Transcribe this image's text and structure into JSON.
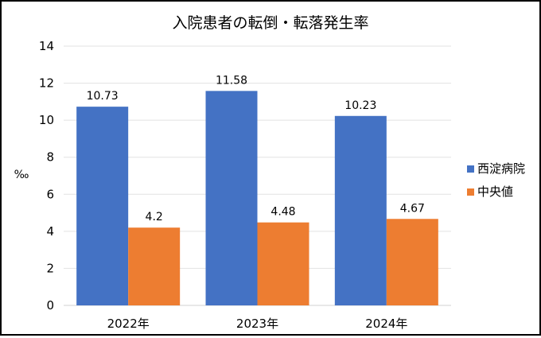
{
  "chart_data": {
    "type": "bar",
    "title": "入院患者の転倒・転落発生率",
    "ylabel": "‰",
    "xlabel": "",
    "categories": [
      "2022年",
      "2023年",
      "2024年"
    ],
    "series": [
      {
        "name": "西淀病院",
        "values": [
          10.73,
          11.58,
          10.23
        ],
        "color": "#4472C4"
      },
      {
        "name": "中央値",
        "values": [
          4.2,
          4.48,
          4.67
        ],
        "color": "#ED7D31"
      }
    ],
    "ylim": [
      0,
      14
    ],
    "yticks": [
      0,
      2,
      4,
      6,
      8,
      10,
      12,
      14
    ],
    "grid": true,
    "legend": "right",
    "data_labels": true
  }
}
